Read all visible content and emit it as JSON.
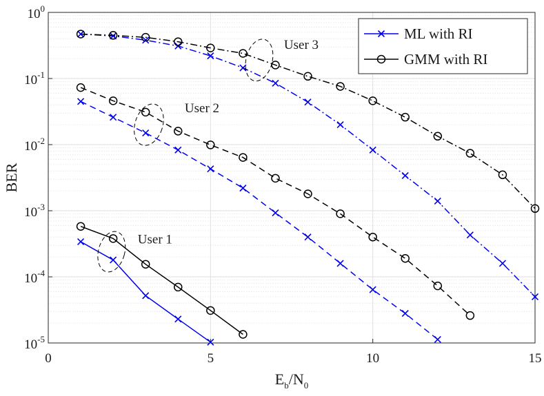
{
  "chart_data": {
    "type": "line",
    "xlabel": "E_b/N_0",
    "xlabel_parts": {
      "base1": "E",
      "sub1": "b",
      "slash": "/",
      "base2": "N",
      "sub2": "0"
    },
    "ylabel": "BER",
    "xlim": [
      0,
      15
    ],
    "ylim": [
      1e-05,
      1
    ],
    "yscale": "log",
    "grid": true,
    "x_ticks": [
      "0",
      "5",
      "10",
      "15"
    ],
    "y_ticks": [
      {
        "base": "10",
        "exp": "0"
      },
      {
        "base": "10",
        "exp": "-1"
      },
      {
        "base": "10",
        "exp": "-2"
      },
      {
        "base": "10",
        "exp": "-3"
      },
      {
        "base": "10",
        "exp": "-4"
      },
      {
        "base": "10",
        "exp": "-5"
      }
    ],
    "legend": {
      "placement": "top-right",
      "entries": [
        "ML with RI",
        "GMM with RI"
      ]
    },
    "styles": {
      "ml": {
        "color": "#0000ee",
        "marker": "x"
      },
      "gmm": {
        "color": "#000000",
        "marker": "o"
      }
    },
    "series": [
      {
        "name": "ML with RI",
        "user": "User 1",
        "kind": "ml",
        "dash": "solid",
        "x": [
          1,
          2,
          3,
          4,
          5
        ],
        "values": [
          0.00034,
          0.00018,
          5.2e-05,
          2.3e-05,
          1.03e-05
        ]
      },
      {
        "name": "GMM with RI",
        "user": "User 1",
        "kind": "gmm",
        "dash": "solid",
        "x": [
          1,
          2,
          3,
          4,
          5,
          6
        ],
        "values": [
          0.00058,
          0.00038,
          0.000155,
          7e-05,
          3.1e-05,
          1.35e-05
        ]
      },
      {
        "name": "ML with RI",
        "user": "User 2",
        "kind": "ml",
        "dash": "dashed",
        "x": [
          1,
          2,
          3,
          4,
          5,
          6,
          7,
          8,
          9,
          10,
          11,
          12
        ],
        "values": [
          0.045,
          0.026,
          0.015,
          0.0083,
          0.0043,
          0.0022,
          0.00093,
          0.0004,
          0.00016,
          6.4e-05,
          2.8e-05,
          1.13e-05
        ]
      },
      {
        "name": "GMM with RI",
        "user": "User 2",
        "kind": "gmm",
        "dash": "dashed",
        "x": [
          1,
          2,
          3,
          4,
          5,
          6,
          7,
          8,
          9,
          10,
          11,
          12,
          13
        ],
        "values": [
          0.073,
          0.046,
          0.031,
          0.016,
          0.0099,
          0.0064,
          0.0031,
          0.0018,
          0.0009,
          0.0004,
          0.00019,
          7.3e-05,
          2.6e-05
        ]
      },
      {
        "name": "ML with RI",
        "user": "User 3",
        "kind": "ml",
        "dash": "dashdot",
        "x": [
          1,
          2,
          3,
          4,
          5,
          6,
          7,
          8,
          9,
          10,
          11,
          12,
          13,
          14,
          15
        ],
        "values": [
          0.47,
          0.44,
          0.38,
          0.31,
          0.22,
          0.145,
          0.085,
          0.044,
          0.02,
          0.0083,
          0.0034,
          0.0014,
          0.00043,
          0.00016,
          5e-05
        ]
      },
      {
        "name": "GMM with RI",
        "user": "User 3",
        "kind": "gmm",
        "dash": "dashdot",
        "x": [
          1,
          2,
          3,
          4,
          5,
          6,
          7,
          8,
          9,
          10,
          11,
          12,
          13,
          14,
          15
        ],
        "values": [
          0.47,
          0.45,
          0.42,
          0.36,
          0.29,
          0.24,
          0.16,
          0.108,
          0.076,
          0.046,
          0.026,
          0.0134,
          0.0074,
          0.0035,
          0.00108
        ]
      }
    ],
    "annotations": [
      {
        "text": "User 1",
        "x": 1.5,
        "y": 0.00022
      },
      {
        "text": "User 2",
        "x": 3.0,
        "y": 0.02
      },
      {
        "text": "User 3",
        "x": 6.6,
        "y": 0.19
      }
    ]
  }
}
